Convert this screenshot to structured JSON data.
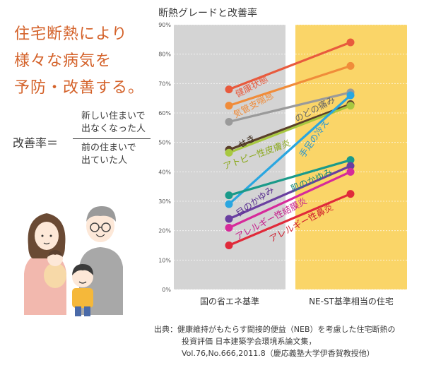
{
  "headline": [
    "住宅断熱により",
    "様々な病気を",
    "予防・改善する。"
  ],
  "formula": {
    "label": "改善率＝",
    "numerator": [
      "新しい住まいで",
      "出なくなった人"
    ],
    "denominator": [
      "前の住まいで",
      "出ていた人"
    ]
  },
  "source": {
    "lines": [
      "出典：健康維持がもたらす間接的便益（NEB）を考慮した住宅断熱の",
      "投資評価 日本建築学会環境系論文集，",
      "Vol.76,No.666,2011.8（慶応義塾大学伊香賀教授他）"
    ]
  },
  "colors": {
    "headline": "#d4622a",
    "left_panel": "#d4d4d4",
    "right_panel": "#fad568"
  },
  "chart_data": {
    "type": "line",
    "title": "断熱グレードと改善率",
    "categories": [
      "国の省エネ基準",
      "NE-ST基準相当の住宅"
    ],
    "y_ticks": [
      "0%",
      "10%",
      "20%",
      "30%",
      "40%",
      "50%",
      "60%",
      "70%",
      "80%",
      "90%"
    ],
    "ylim": [
      0,
      90
    ],
    "series": [
      {
        "name": "健康状態",
        "values": [
          68,
          84
        ],
        "color": "#e85a3d"
      },
      {
        "name": "気管支喘息",
        "values": [
          62.5,
          76
        ],
        "color": "#f08c3a"
      },
      {
        "name": "のどの痛み",
        "values": [
          57,
          67
        ],
        "color": "#9a9a9a"
      },
      {
        "name": "せき",
        "values": [
          47.5,
          63
        ],
        "color": "#5a3f2a"
      },
      {
        "name": "アトピー性皮膚炎",
        "values": [
          46.5,
          62.5
        ],
        "color": "#a8c840"
      },
      {
        "name": "手足の冷え",
        "values": [
          29,
          66
        ],
        "color": "#2aa6e0"
      },
      {
        "name": "肌のかゆみ",
        "values": [
          32,
          44
        ],
        "color": "#1a9a8a"
      },
      {
        "name": "目のかゆみ",
        "values": [
          24,
          42
        ],
        "color": "#6a3fa0"
      },
      {
        "name": "アレルギー性結膜炎",
        "values": [
          21,
          40
        ],
        "color": "#d62a9a"
      },
      {
        "name": "アレルギー性鼻炎",
        "values": [
          15,
          32.5
        ],
        "color": "#e02a3a"
      }
    ],
    "labels": [
      {
        "text": "健康状態",
        "color": "#e85a3d"
      },
      {
        "text": "気管支喘息",
        "color": "#f08c3a"
      },
      {
        "text": "のどの痛み",
        "color": "#666666"
      },
      {
        "text": "せき",
        "color": "#3a2a1a"
      },
      {
        "text": "アトピー性皮膚炎",
        "color": "#8aa81a"
      },
      {
        "text": "手足の冷え",
        "color": "#2a96d0"
      },
      {
        "text": "肌のかゆみ",
        "color": "#1a8a7a"
      },
      {
        "text": "目のかゆみ",
        "color": "#5a2f90"
      },
      {
        "text": "アレルギー性結膜炎",
        "color": "#c61a8a"
      },
      {
        "text": "アレルギー性鼻炎",
        "color": "#d01a2a"
      }
    ]
  }
}
